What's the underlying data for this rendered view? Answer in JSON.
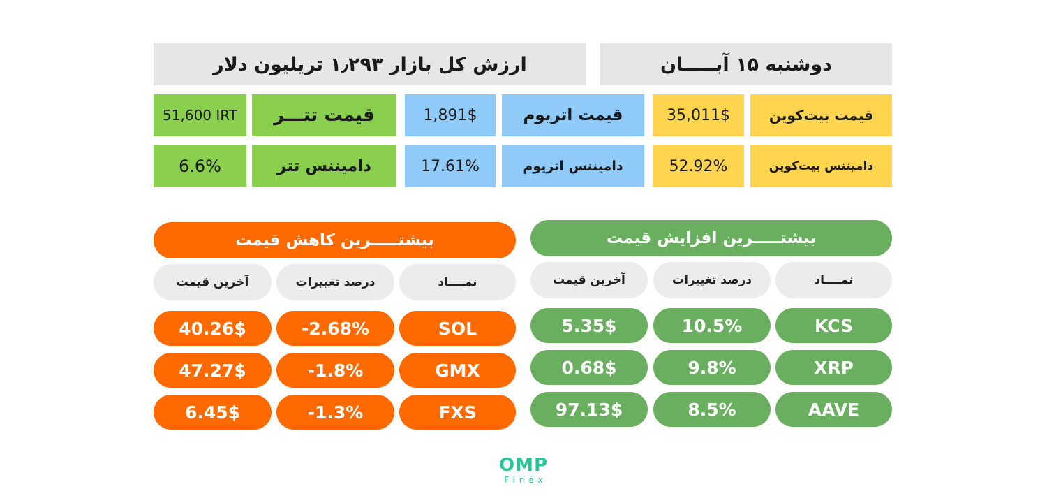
{
  "header": {
    "date": "دوشنبه ۱۵ آبـــــان",
    "market_cap": "ارزش کل بازار ۱٫۲۹۳ تریلیون دلار"
  },
  "stats": {
    "btc_price_label": "قیمت بیت‌کوین",
    "btc_price_value": "35,011$",
    "eth_price_label": "قیمت اتریوم",
    "eth_price_value": "1,891$",
    "usdt_price_label": "قیمت تتـــر",
    "usdt_price_value": "51,600 IRT",
    "btc_dom_label": "دامیننس بیت‌کوین",
    "btc_dom_value": "52.92%",
    "eth_dom_label": "دامیننس اتریوم",
    "eth_dom_value": "17.61%",
    "usdt_dom_label": "دامیننس تتر",
    "usdt_dom_value": "6.6%"
  },
  "gainers": {
    "title": "بیشتـــــرین افزایش قیمت",
    "col_symbol": "نمــــاد",
    "col_change": "درصد تغییرات",
    "col_price": "آخرین قیمت",
    "rows": [
      {
        "symbol": "KCS",
        "change": "10.5%",
        "price": "5.35$"
      },
      {
        "symbol": "XRP",
        "change": "9.8%",
        "price": "0.68$"
      },
      {
        "symbol": "AAVE",
        "change": "8.5%",
        "price": "97.13$"
      }
    ]
  },
  "losers": {
    "title": "بیشتـــــرین کاهش قیمت",
    "col_symbol": "نمــــاد",
    "col_change": "درصد تغییرات",
    "col_price": "آخرین قیمت",
    "rows": [
      {
        "symbol": "SOL",
        "change": "-2.68%",
        "price": "40.26$"
      },
      {
        "symbol": "GMX",
        "change": "-1.8%",
        "price": "47.27$"
      },
      {
        "symbol": "FXS",
        "change": "-1.3%",
        "price": "6.45$"
      }
    ]
  },
  "logo": {
    "main": "OMP",
    "sub": "Finex"
  },
  "colors": {
    "gray": "#e6e6e6",
    "yellow": "#ffd54f",
    "blue": "#90caf9",
    "light_green": "#8bcf4f",
    "green": "#6aae5f",
    "orange": "#ff6a00",
    "logo": "#27c59a"
  }
}
